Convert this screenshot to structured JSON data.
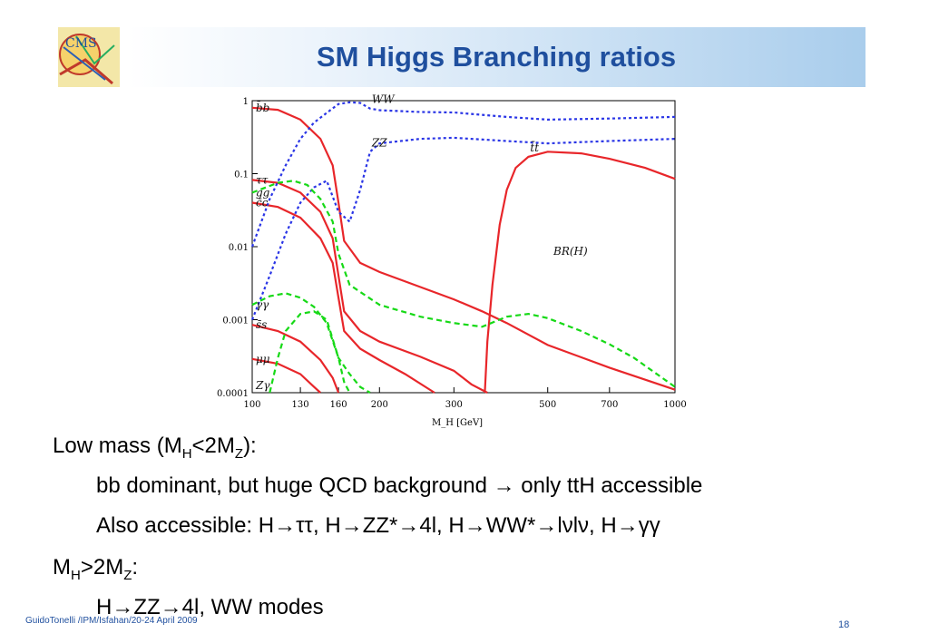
{
  "slide": {
    "title": "SM Higgs Branching ratios",
    "logo_text": "CMS",
    "footer": "GuidoTonelli /IPM/Isfahan/20-24 April 2009",
    "page_number": "18"
  },
  "bullets": {
    "low_mass": {
      "pre": "Low mass (M",
      "sub1": "H",
      "mid": "<2M",
      "sub2": "Z",
      "post": "):"
    },
    "line2": "bb dominant, but huge QCD background → only ttH accessible",
    "line3": "Also accessible: H→ττ, H→ZZ*→4l, H→WW*→lνlν, H→γγ",
    "high_mass": {
      "pre": "M",
      "sub1": "H",
      "mid": ">2M",
      "sub2": "Z",
      "post": ":"
    },
    "line5": "H→ZZ→4l, WW modes"
  },
  "chart_data": {
    "type": "line",
    "title": "",
    "xlabel": "M_H [GeV]",
    "ylabel": "",
    "annotation": "BR(H)",
    "x_scale": "log",
    "y_scale": "log",
    "xlim": [
      100,
      1000
    ],
    "ylim": [
      0.0001,
      1
    ],
    "x_ticks": [
      100,
      130,
      160,
      200,
      300,
      500,
      700,
      1000
    ],
    "x_tick_labels": [
      "100",
      "130",
      "160",
      "200",
      "300",
      "500",
      "700",
      "1000"
    ],
    "y_ticks": [
      1,
      0.1,
      0.01,
      0.001,
      0.0001
    ],
    "y_tick_labels": [
      "1",
      "0.1",
      "0.01",
      "0.001",
      "0.0001"
    ],
    "colors": {
      "fermion": "#e8262a",
      "boson": "#2a35e6",
      "loop": "#16d916"
    },
    "series": [
      {
        "name": "b̄b",
        "label_at": "left",
        "style": "fermion",
        "points": [
          [
            100,
            0.8
          ],
          [
            115,
            0.75
          ],
          [
            130,
            0.55
          ],
          [
            145,
            0.3
          ],
          [
            155,
            0.13
          ],
          [
            160,
            0.04
          ],
          [
            165,
            0.012
          ],
          [
            180,
            0.006
          ],
          [
            200,
            0.0045
          ],
          [
            250,
            0.0028
          ],
          [
            300,
            0.0019
          ],
          [
            350,
            0.0013
          ],
          [
            400,
            0.0009
          ],
          [
            500,
            0.00045
          ],
          [
            700,
            0.00022
          ],
          [
            1000,
            0.00011
          ]
        ]
      },
      {
        "name": "ττ",
        "label_at": "left",
        "style": "fermion",
        "points": [
          [
            100,
            0.082
          ],
          [
            115,
            0.075
          ],
          [
            130,
            0.055
          ],
          [
            145,
            0.03
          ],
          [
            155,
            0.013
          ],
          [
            160,
            0.004
          ],
          [
            165,
            0.0013
          ],
          [
            180,
            0.0007
          ],
          [
            200,
            0.0005
          ],
          [
            250,
            0.00031
          ],
          [
            300,
            0.0002
          ],
          [
            330,
            0.00013
          ],
          [
            360,
            0.0001
          ]
        ]
      },
      {
        "name": "c̄c",
        "label_at": "left",
        "style": "fermion",
        "points": [
          [
            100,
            0.04
          ],
          [
            115,
            0.035
          ],
          [
            130,
            0.025
          ],
          [
            145,
            0.013
          ],
          [
            155,
            0.006
          ],
          [
            160,
            0.002
          ],
          [
            165,
            0.0007
          ],
          [
            180,
            0.0004
          ],
          [
            200,
            0.00028
          ],
          [
            230,
            0.00018
          ],
          [
            270,
            0.0001
          ]
        ]
      },
      {
        "name": "s̄s",
        "label_at": "left",
        "style": "fermion",
        "points": [
          [
            100,
            0.00085
          ],
          [
            115,
            0.0007
          ],
          [
            130,
            0.0005
          ],
          [
            145,
            0.00028
          ],
          [
            155,
            0.00016
          ],
          [
            160,
            0.0001
          ]
        ]
      },
      {
        "name": "μμ",
        "label_at": "left",
        "style": "fermion",
        "points": [
          [
            100,
            0.00029
          ],
          [
            115,
            0.00025
          ],
          [
            130,
            0.00018
          ],
          [
            140,
            0.00012
          ],
          [
            145,
            0.0001
          ]
        ]
      },
      {
        "name": "t̄t",
        "label_at": "right",
        "style": "fermion",
        "points": [
          [
            355,
            0.0001
          ],
          [
            360,
            0.0005
          ],
          [
            370,
            0.003
          ],
          [
            385,
            0.02
          ],
          [
            400,
            0.06
          ],
          [
            420,
            0.12
          ],
          [
            450,
            0.17
          ],
          [
            500,
            0.2
          ],
          [
            600,
            0.19
          ],
          [
            700,
            0.16
          ],
          [
            850,
            0.12
          ],
          [
            1000,
            0.085
          ]
        ]
      },
      {
        "name": "WW",
        "label_at": "right",
        "style": "boson",
        "points": [
          [
            100,
            0.01
          ],
          [
            110,
            0.045
          ],
          [
            120,
            0.13
          ],
          [
            130,
            0.3
          ],
          [
            140,
            0.5
          ],
          [
            150,
            0.68
          ],
          [
            160,
            0.9
          ],
          [
            170,
            0.95
          ],
          [
            180,
            0.93
          ],
          [
            190,
            0.78
          ],
          [
            200,
            0.74
          ],
          [
            250,
            0.7
          ],
          [
            300,
            0.69
          ],
          [
            400,
            0.6
          ],
          [
            500,
            0.55
          ],
          [
            700,
            0.57
          ],
          [
            1000,
            0.6
          ]
        ]
      },
      {
        "name": "ZZ",
        "label_at": "right",
        "style": "boson",
        "points": [
          [
            100,
            0.001
          ],
          [
            110,
            0.004
          ],
          [
            120,
            0.015
          ],
          [
            130,
            0.04
          ],
          [
            140,
            0.065
          ],
          [
            150,
            0.08
          ],
          [
            160,
            0.03
          ],
          [
            170,
            0.022
          ],
          [
            180,
            0.06
          ],
          [
            190,
            0.2
          ],
          [
            200,
            0.26
          ],
          [
            250,
            0.3
          ],
          [
            300,
            0.31
          ],
          [
            400,
            0.28
          ],
          [
            500,
            0.26
          ],
          [
            700,
            0.28
          ],
          [
            1000,
            0.3
          ]
        ]
      },
      {
        "name": "gg",
        "label_at": "left",
        "style": "loop",
        "points": [
          [
            100,
            0.055
          ],
          [
            115,
            0.075
          ],
          [
            125,
            0.08
          ],
          [
            135,
            0.07
          ],
          [
            145,
            0.045
          ],
          [
            155,
            0.022
          ],
          [
            160,
            0.008
          ],
          [
            170,
            0.003
          ],
          [
            200,
            0.0016
          ],
          [
            250,
            0.0011
          ],
          [
            300,
            0.0009
          ],
          [
            350,
            0.0008
          ],
          [
            400,
            0.0011
          ],
          [
            450,
            0.0012
          ],
          [
            500,
            0.00105
          ],
          [
            600,
            0.0007
          ],
          [
            700,
            0.00046
          ],
          [
            800,
            0.0003
          ],
          [
            1000,
            0.00012
          ]
        ]
      },
      {
        "name": "γγ",
        "label_at": "left",
        "style": "loop",
        "points": [
          [
            100,
            0.0016
          ],
          [
            110,
            0.0021
          ],
          [
            120,
            0.0023
          ],
          [
            130,
            0.002
          ],
          [
            140,
            0.0015
          ],
          [
            150,
            0.0009
          ],
          [
            160,
            0.0003
          ],
          [
            165,
            0.00014
          ],
          [
            170,
            0.0001
          ]
        ]
      },
      {
        "name": "Zγ",
        "label_at": "left",
        "style": "loop",
        "points": [
          [
            110,
            0.0001
          ],
          [
            115,
            0.0003
          ],
          [
            120,
            0.0007
          ],
          [
            130,
            0.0012
          ],
          [
            140,
            0.0013
          ],
          [
            150,
            0.001
          ],
          [
            160,
            0.0003
          ],
          [
            170,
            0.00018
          ],
          [
            180,
            0.00012
          ],
          [
            190,
            0.0001
          ]
        ]
      }
    ]
  }
}
